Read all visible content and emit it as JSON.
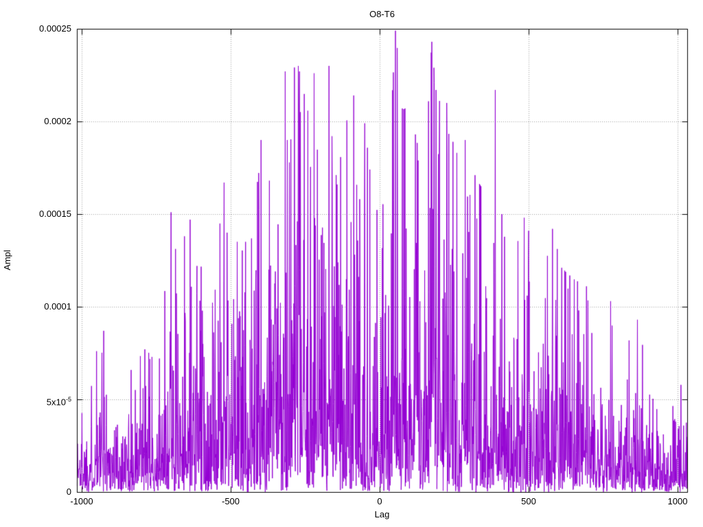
{
  "chart": {
    "title": "O8-T6",
    "xlabel": "Lag",
    "ylabel": "Ampl",
    "colors": {
      "line": "#9400d3",
      "grid": "#9e9e9e",
      "border": "#000000",
      "text": "#000000",
      "background": "#ffffff"
    }
  },
  "chart_data": {
    "type": "line",
    "title": "O8-T6",
    "xlabel": "Lag",
    "ylabel": "Ampl",
    "xlim": [
      -1016,
      1032
    ],
    "ylim": [
      0,
      0.00025
    ],
    "grid": true,
    "legend": "none",
    "x_ticks": [
      {
        "value": -1000,
        "label": "-1000"
      },
      {
        "value": -500,
        "label": "-500"
      },
      {
        "value": 0,
        "label": "0"
      },
      {
        "value": 500,
        "label": "500"
      },
      {
        "value": 1000,
        "label": "1000"
      }
    ],
    "y_ticks": [
      {
        "value": 0,
        "label": "0"
      },
      {
        "value": 5e-05,
        "label": "5x10",
        "sup": "-5"
      },
      {
        "value": 0.0001,
        "label": "0.0001"
      },
      {
        "value": 0.00015,
        "label": "0.00015"
      },
      {
        "value": 0.0002,
        "label": "0.0002"
      },
      {
        "value": 0.00025,
        "label": "0.00025"
      }
    ],
    "series": [
      {
        "name": "O8-T6",
        "color": "#9400d3",
        "n_points": 2049,
        "lag_step": 1,
        "noise_mean_fraction": 0.26,
        "random_seed": 1337,
        "envelope": [
          [
            -1016,
            6e-05
          ],
          [
            -980,
            6.5e-05
          ],
          [
            -950,
            7.6e-05
          ],
          [
            -926,
            8.7e-05
          ],
          [
            -890,
            6e-05
          ],
          [
            -850,
            6.2e-05
          ],
          [
            -788,
            7.7e-05
          ],
          [
            -740,
            7e-05
          ],
          [
            -700,
            0.000151
          ],
          [
            -672,
            0.000114
          ],
          [
            -636,
            0.000147
          ],
          [
            -600,
            0.000122
          ],
          [
            -560,
            0.000107
          ],
          [
            -522,
            0.000167
          ],
          [
            -480,
            0.000135
          ],
          [
            -440,
            0.000152
          ],
          [
            -398,
            0.00019
          ],
          [
            -360,
            0.000168
          ],
          [
            -317,
            0.000227
          ],
          [
            -273,
            0.00023
          ],
          [
            -240,
            0.000205
          ],
          [
            -220,
            0.000226
          ],
          [
            -195,
            0.00018
          ],
          [
            -170,
            0.00023
          ],
          [
            -128,
            0.00019
          ],
          [
            -87,
            0.000214
          ],
          [
            -50,
            0.000199
          ],
          [
            -20,
            0.000155
          ],
          [
            0,
            0.00015
          ],
          [
            30,
            0.000175
          ],
          [
            53,
            0.000249
          ],
          [
            80,
            0.000207
          ],
          [
            120,
            0.000193
          ],
          [
            150,
            0.00017
          ],
          [
            175,
            0.000243
          ],
          [
            210,
            0.0002
          ],
          [
            246,
            0.000189
          ],
          [
            287,
            0.00019
          ],
          [
            320,
            0.000171
          ],
          [
            355,
            0.00016
          ],
          [
            388,
            0.000217
          ],
          [
            420,
            0.00015
          ],
          [
            455,
            0.00013
          ],
          [
            485,
            0.000148
          ],
          [
            515,
            0.00014
          ],
          [
            545,
            0.000135
          ],
          [
            580,
            0.000142
          ],
          [
            611,
            0.000121
          ],
          [
            650,
            0.000115
          ],
          [
            694,
            0.000111
          ],
          [
            730,
            9.5e-05
          ],
          [
            775,
            0.000103
          ],
          [
            820,
            7.5e-05
          ],
          [
            865,
            9.3e-05
          ],
          [
            900,
            6.5e-05
          ],
          [
            935,
            5.5e-05
          ],
          [
            965,
            5e-05
          ],
          [
            995,
            6e-05
          ],
          [
            1032,
            5.5e-05
          ]
        ],
        "peaks": [
          [
            -700,
            0.000151
          ],
          [
            -655,
            0.000138
          ],
          [
            -636,
            0.000147
          ],
          [
            -613,
            0.000122
          ],
          [
            -522,
            0.000167
          ],
          [
            -512,
            0.00014
          ],
          [
            -478,
            0.000135
          ],
          [
            -450,
            0.000135
          ],
          [
            -398,
            0.00019
          ],
          [
            -370,
            0.000168
          ],
          [
            -317,
            0.000227
          ],
          [
            -310,
            0.00019
          ],
          [
            -273,
            0.00023
          ],
          [
            -266,
            0.000205
          ],
          [
            -220,
            0.000226
          ],
          [
            -170,
            0.00023
          ],
          [
            -160,
            0.000192
          ],
          [
            -87,
            0.000214
          ],
          [
            -50,
            0.000199
          ],
          [
            53,
            0.000249
          ],
          [
            76,
            0.000207
          ],
          [
            85,
            0.000207
          ],
          [
            120,
            0.000193
          ],
          [
            175,
            0.000243
          ],
          [
            182,
            0.000229
          ],
          [
            189,
            0.000217
          ],
          [
            225,
            0.00021
          ],
          [
            246,
            0.000189
          ],
          [
            287,
            0.00019
          ],
          [
            320,
            0.000171
          ],
          [
            340,
            0.000165
          ],
          [
            388,
            0.000217
          ],
          [
            410,
            0.00015
          ],
          [
            485,
            0.000148
          ],
          [
            500,
            0.000141
          ],
          [
            580,
            0.000142
          ],
          [
            611,
            0.000121
          ],
          [
            694,
            0.000111
          ],
          [
            775,
            0.000103
          ],
          [
            865,
            9.3e-05
          ],
          [
            -926,
            8.7e-05
          ],
          [
            -950,
            7.6e-05
          ],
          [
            -788,
            7.7e-05
          ]
        ]
      }
    ]
  }
}
